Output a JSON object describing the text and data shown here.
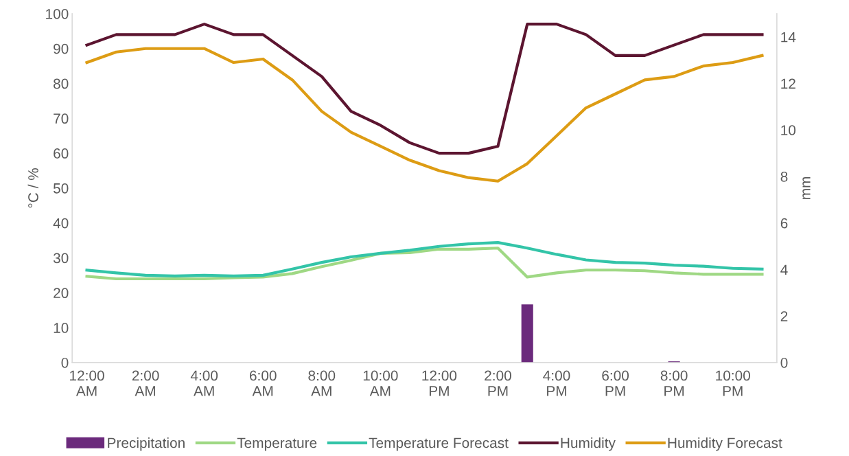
{
  "chart_data": {
    "type": "line",
    "categories": [
      "12:00\nAM",
      null,
      "2:00\nAM",
      null,
      "4:00\nAM",
      null,
      "6:00\nAM",
      null,
      "8:00\nAM",
      null,
      "10:00\nAM",
      null,
      "12:00\nPM",
      null,
      "2:00\nPM",
      null,
      "4:00\nPM",
      null,
      "6:00\nPM",
      null,
      "8:00\nPM",
      null,
      "10:00\nPM",
      null
    ],
    "ylabel": "°C / %",
    "y2label": "mm",
    "ylim": [
      0,
      100
    ],
    "yticks": [
      0,
      10,
      20,
      30,
      40,
      50,
      60,
      70,
      80,
      90,
      100
    ],
    "y2lim": [
      0,
      15
    ],
    "y2ticks": [
      0,
      2,
      4,
      6,
      8,
      10,
      12,
      14
    ],
    "grid": false,
    "legend": "bottom",
    "marker": "none",
    "line_style": "solid",
    "series": [
      {
        "name": "Precipitation",
        "type": "bar",
        "axis": "y2",
        "color": "#6b2a7c",
        "values": [
          0,
          0,
          0,
          0,
          0,
          0,
          0,
          0,
          0,
          0,
          0,
          0,
          0,
          0,
          0,
          2.5,
          0,
          0,
          0,
          0,
          0.05,
          0,
          0,
          0
        ]
      },
      {
        "name": "Temperature",
        "color": "#9fd884",
        "values": [
          24.7,
          24,
          24,
          24,
          24,
          24.3,
          24.5,
          25.5,
          27.5,
          29.3,
          31.3,
          31.5,
          32.5,
          32.5,
          32.8,
          24.5,
          25.7,
          26.5,
          26.5,
          26.3,
          25.7,
          25.3,
          25.3,
          25.3
        ]
      },
      {
        "name": "Temperature Forecast",
        "color": "#33c4a8",
        "values": [
          26.5,
          25.7,
          25,
          24.8,
          25,
          24.8,
          25,
          26.8,
          28.7,
          30.3,
          31.3,
          32.2,
          33.3,
          34,
          34.4,
          32.8,
          31,
          29.4,
          28.7,
          28.5,
          27.9,
          27.6,
          27,
          26.8
        ]
      },
      {
        "name": "Humidity",
        "color": "#5c1530",
        "values": [
          91,
          94,
          94,
          94,
          97,
          94,
          94,
          88,
          82,
          72,
          68,
          63,
          60,
          60,
          62,
          97,
          97,
          94,
          88,
          88,
          91,
          94,
          94,
          94
        ]
      },
      {
        "name": "Humidity Forecast",
        "color": "#dd9c14",
        "values": [
          86,
          89,
          90,
          90,
          90,
          86,
          87,
          81,
          72,
          66,
          62,
          58,
          55,
          53,
          52,
          57,
          65,
          73,
          77,
          81,
          82,
          85,
          86,
          88
        ]
      }
    ]
  }
}
